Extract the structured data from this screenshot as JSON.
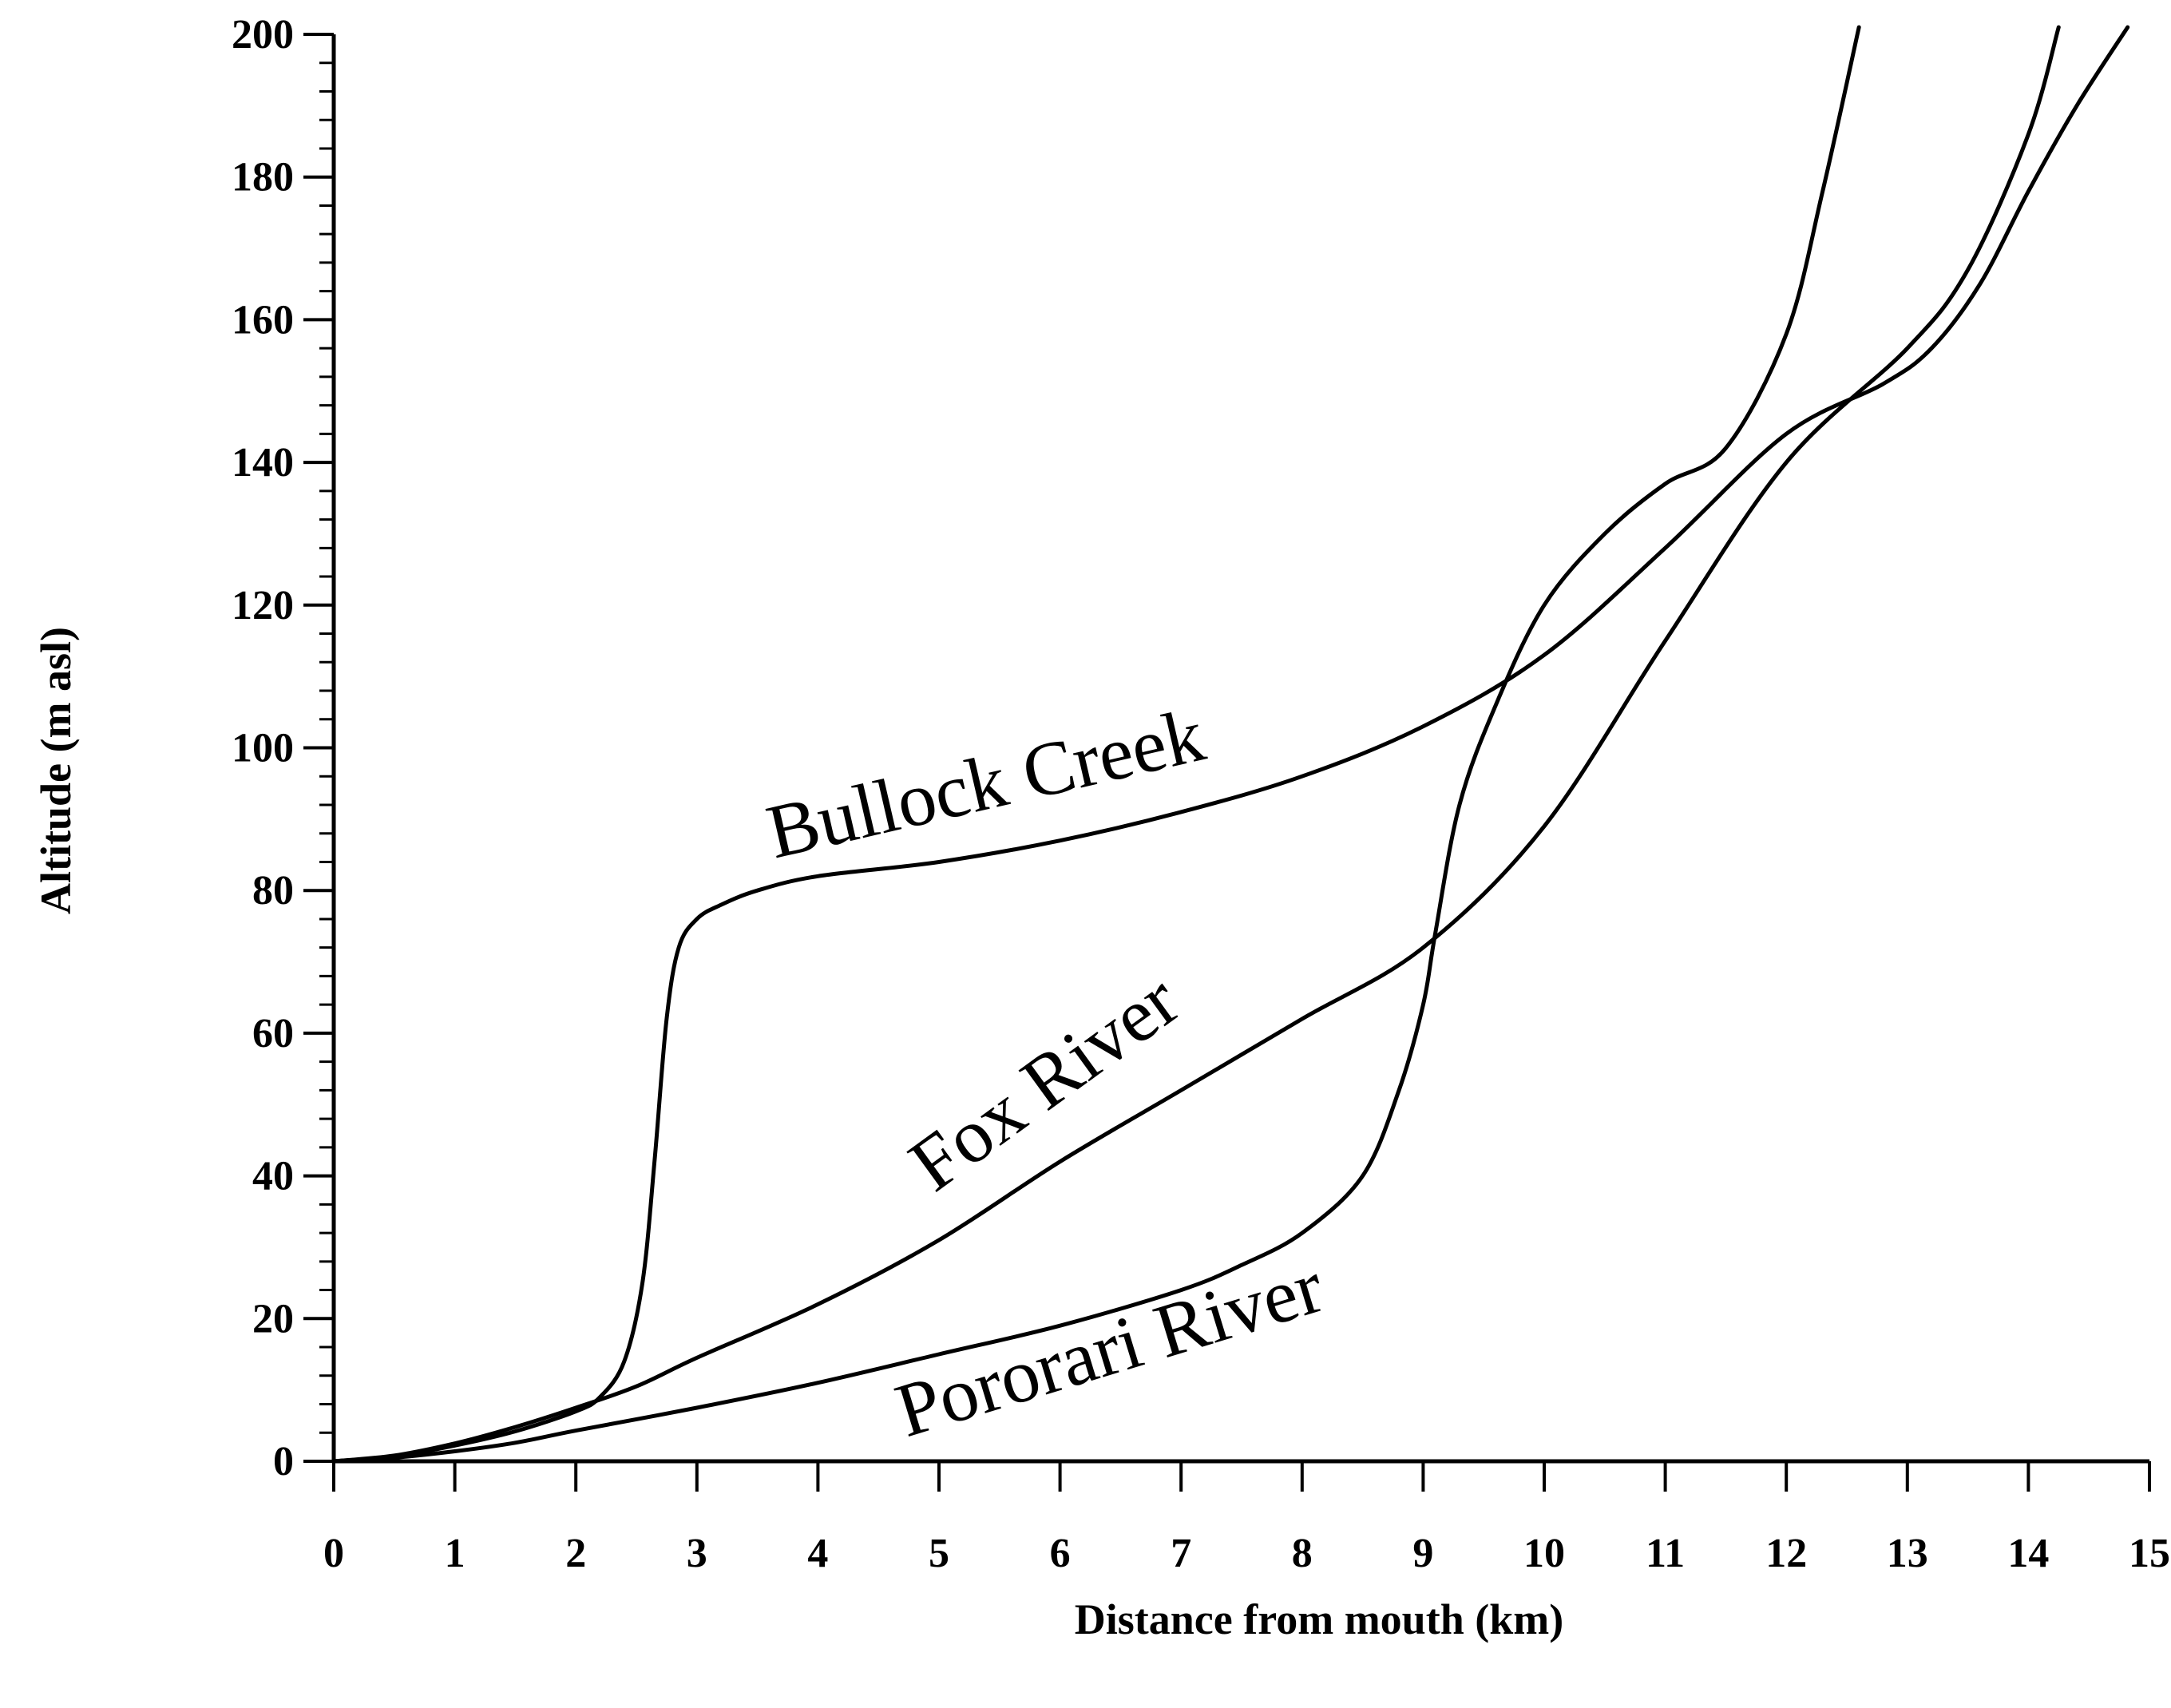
{
  "chart_data": {
    "type": "line",
    "title": "",
    "xlabel": "Distance from mouth (km)",
    "ylabel": "Altitude (m asl)",
    "xlim": [
      0,
      15
    ],
    "ylim": [
      0,
      200
    ],
    "x_ticks": [
      "0",
      "1",
      "2",
      "3",
      "4",
      "5",
      "6",
      "7",
      "8",
      "9",
      "10",
      "11",
      "12",
      "13",
      "14",
      "15"
    ],
    "y_ticks": [
      "0",
      "20",
      "40",
      "60",
      "80",
      "100",
      "120",
      "140",
      "160",
      "180",
      "200"
    ],
    "grid": false,
    "legend": "none (series labelled directly on lines)",
    "series": [
      {
        "name": "Bullock Creek",
        "x": [
          0,
          0.5,
          1,
          1.5,
          2,
          2.2,
          2.4,
          2.55,
          2.65,
          2.75,
          2.85,
          3.0,
          3.2,
          3.5,
          4,
          5,
          6,
          7,
          8,
          9,
          10,
          11,
          12,
          12.8,
          13.2,
          13.6,
          14.0,
          14.4,
          14.82
        ],
        "y": [
          0,
          0.7,
          2.2,
          4.2,
          7,
          9,
          14,
          25,
          42,
          62,
          72,
          76,
          78,
          80,
          82,
          84,
          87,
          91,
          96,
          103,
          113,
          128,
          144,
          151,
          156,
          165,
          178,
          190,
          201
        ]
      },
      {
        "name": "Fox River",
        "x": [
          0,
          0.5,
          1,
          1.5,
          2,
          2.5,
          3,
          4,
          5,
          6,
          7,
          8,
          9,
          10,
          11,
          12,
          13,
          13.5,
          14.0,
          14.25
        ],
        "y": [
          0,
          0.8,
          2.5,
          4.8,
          7.5,
          10.5,
          14.5,
          22,
          31,
          42,
          52,
          62,
          72,
          89,
          115,
          140,
          156,
          167,
          186,
          201
        ]
      },
      {
        "name": "Pororari River",
        "x": [
          0,
          0.5,
          1,
          1.5,
          2,
          3,
          4,
          5,
          6,
          7,
          7.5,
          8,
          8.5,
          8.8,
          9.0,
          9.1,
          9.3,
          9.6,
          10,
          10.5,
          11,
          11.5,
          12,
          12.3,
          12.6
        ],
        "y": [
          0,
          0.5,
          1.4,
          2.6,
          4.3,
          7.5,
          11,
          15,
          19,
          24,
          27.5,
          32,
          40,
          52,
          64,
          74,
          92,
          106,
          120,
          130,
          137,
          142,
          158,
          178,
          201
        ]
      }
    ]
  }
}
